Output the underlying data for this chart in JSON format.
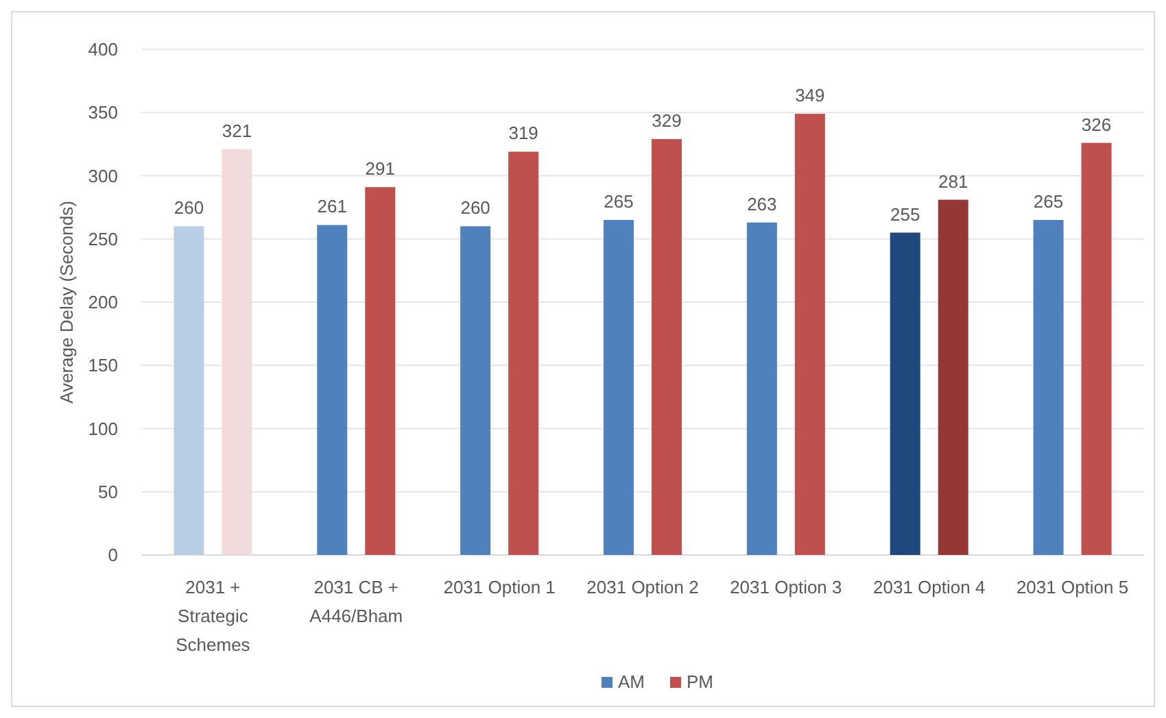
{
  "chart_data": {
    "type": "bar",
    "ylabel": "Average Delay (Seconds)",
    "categories": [
      "2031 + Strategic Schemes",
      "2031 CB + A446/Bham",
      "2031 Option 1",
      "2031 Option 2",
      "2031 Option 3",
      "2031 Option 4",
      "2031 Option 5"
    ],
    "series": [
      {
        "name": "AM",
        "color": "#4f81bd",
        "colors": [
          "#b9cde5",
          "#4f81bd",
          "#4f81bd",
          "#4f81bd",
          "#4f81bd",
          "#1f497d",
          "#4f81bd"
        ],
        "values": [
          260,
          261,
          260,
          265,
          263,
          255,
          265
        ]
      },
      {
        "name": "PM",
        "color": "#c0504d",
        "colors": [
          "#f2dcdb",
          "#c0504d",
          "#c0504d",
          "#c0504d",
          "#c0504d",
          "#953735",
          "#c0504d"
        ],
        "values": [
          321,
          291,
          319,
          329,
          349,
          281,
          326
        ]
      }
    ],
    "ylim": [
      0,
      400
    ],
    "yticks": [
      0,
      50,
      100,
      150,
      200,
      250,
      300,
      350,
      400
    ],
    "grid": "y",
    "data_labels": true,
    "legend": "bottom"
  }
}
